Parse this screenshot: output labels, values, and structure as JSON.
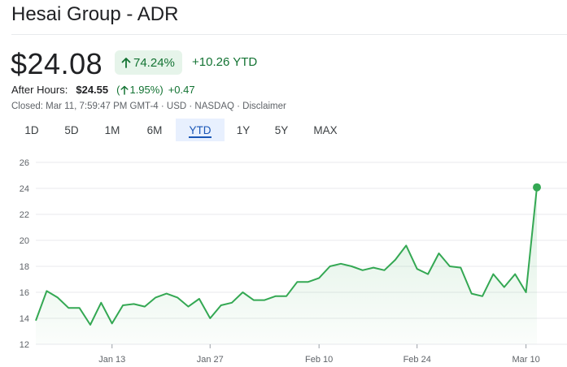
{
  "header": {
    "title": "Hesai Group - ADR"
  },
  "quote": {
    "price": "$24.08",
    "percent_change": "74.24%",
    "change": "+10.26 YTD",
    "after_hours_label": "After Hours:",
    "after_hours_price": "$24.55",
    "after_hours_pct_open": "(",
    "after_hours_pct": "1.95%",
    "after_hours_pct_close": ")",
    "after_hours_change": "+0.47",
    "closed_info": "Closed: Mar 11, 7:59:47 PM GMT-4 · USD · NASDAQ · ",
    "disclaimer": "Disclaimer"
  },
  "tabs": [
    {
      "label": "1D"
    },
    {
      "label": "5D"
    },
    {
      "label": "1M"
    },
    {
      "label": "6M"
    },
    {
      "label": "YTD",
      "active": true
    },
    {
      "label": "1Y"
    },
    {
      "label": "5Y"
    },
    {
      "label": "MAX"
    }
  ],
  "colors": {
    "up": "#137333",
    "line": "#34a853",
    "accent": "#1a56b6"
  },
  "chart_data": {
    "type": "area",
    "title": "",
    "xlabel": "",
    "ylabel": "",
    "ylim": [
      12,
      26
    ],
    "yticks": [
      12,
      14,
      16,
      18,
      20,
      22,
      24,
      26
    ],
    "xticks": [
      "Jan 13",
      "Jan 27",
      "Feb 10",
      "Feb 24",
      "Mar 10"
    ],
    "grid": "horizontal",
    "series": [
      {
        "values": [
          13.82,
          16.1,
          15.6,
          14.8,
          14.8,
          13.5,
          15.2,
          13.6,
          15.0,
          15.1,
          14.9,
          15.6,
          15.9,
          15.6,
          14.9,
          15.5,
          14.0,
          15.0,
          15.2,
          16.0,
          15.4,
          15.4,
          15.7,
          15.7,
          16.8,
          16.8,
          17.1,
          18.0,
          18.2,
          18.0,
          17.7,
          17.9,
          17.7,
          18.5,
          19.6,
          17.8,
          17.4,
          19.0,
          18.0,
          17.9,
          15.9,
          15.7,
          17.4,
          16.4,
          17.4,
          16.0,
          24.08
        ]
      }
    ],
    "last_point": 24.08
  }
}
